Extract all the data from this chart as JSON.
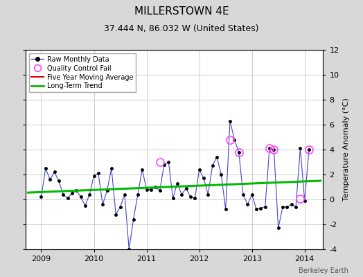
{
  "title": "MILLERSTOWN 4E",
  "subtitle": "37.444 N, 86.032 W (United States)",
  "ylabel": "Temperature Anomaly (°C)",
  "credit": "Berkeley Earth",
  "ylim": [
    -4,
    12
  ],
  "yticks": [
    -4,
    -2,
    0,
    2,
    4,
    6,
    8,
    10,
    12
  ],
  "xlim_start": 2008.7,
  "xlim_end": 2014.35,
  "bg_color": "#d8d8d8",
  "plot_bg_color": "#ffffff",
  "raw_x": [
    2009.0,
    2009.083,
    2009.167,
    2009.25,
    2009.333,
    2009.417,
    2009.5,
    2009.583,
    2009.667,
    2009.75,
    2009.833,
    2009.917,
    2010.0,
    2010.083,
    2010.167,
    2010.25,
    2010.333,
    2010.417,
    2010.5,
    2010.583,
    2010.667,
    2010.75,
    2010.833,
    2010.917,
    2011.0,
    2011.083,
    2011.167,
    2011.25,
    2011.333,
    2011.417,
    2011.5,
    2011.583,
    2011.667,
    2011.75,
    2011.833,
    2011.917,
    2012.0,
    2012.083,
    2012.167,
    2012.25,
    2012.333,
    2012.417,
    2012.5,
    2012.583,
    2012.667,
    2012.75,
    2012.833,
    2012.917,
    2013.0,
    2013.083,
    2013.167,
    2013.25,
    2013.333,
    2013.417,
    2013.5,
    2013.583,
    2013.667,
    2013.75,
    2013.833,
    2013.917,
    2014.0,
    2014.083
  ],
  "raw_y": [
    0.2,
    2.5,
    1.6,
    2.2,
    1.5,
    0.4,
    0.1,
    0.5,
    0.7,
    0.2,
    -0.5,
    0.4,
    1.9,
    2.1,
    -0.4,
    0.7,
    2.5,
    -1.2,
    -0.6,
    0.4,
    -4.0,
    -1.6,
    0.4,
    2.4,
    0.8,
    0.8,
    1.0,
    0.7,
    2.8,
    3.0,
    0.1,
    1.3,
    0.4,
    0.9,
    0.2,
    0.1,
    2.4,
    1.7,
    0.4,
    2.7,
    3.4,
    2.0,
    -0.8,
    6.3,
    4.8,
    3.8,
    0.4,
    -0.4,
    0.4,
    -0.8,
    -0.7,
    -0.6,
    4.1,
    4.0,
    -2.3,
    -0.6,
    -0.6,
    -0.4,
    -0.6,
    4.1,
    -0.1,
    4.0
  ],
  "qc_fail_x": [
    2011.25,
    2012.583,
    2012.75,
    2013.333,
    2013.417,
    2013.917,
    2014.083
  ],
  "qc_fail_y": [
    3.0,
    4.8,
    3.8,
    4.1,
    4.0,
    0.05,
    4.0
  ],
  "trend_x": [
    2008.75,
    2014.3
  ],
  "trend_y": [
    0.55,
    1.5
  ],
  "line_color": "#4444cc",
  "marker_color": "#000000",
  "qc_color": "#ff44ff",
  "trend_color": "#00bb00",
  "moving_avg_color": "#dd0000",
  "title_fontsize": 11,
  "subtitle_fontsize": 9,
  "tick_fontsize": 8,
  "legend_fontsize": 7
}
